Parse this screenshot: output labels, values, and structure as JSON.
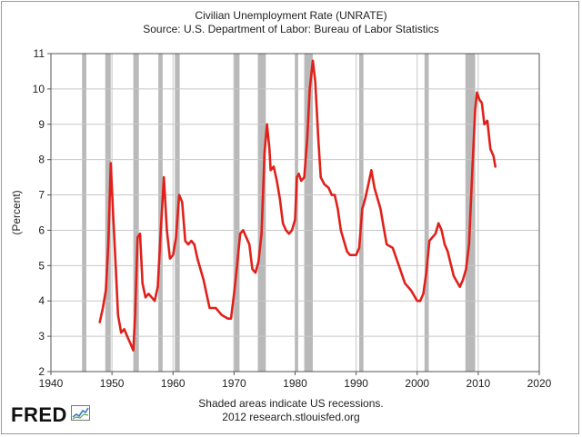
{
  "chart_data": {
    "type": "line",
    "title": "Civilian Unemployment Rate (UNRATE)",
    "subtitle": "Source: U.S. Department of Labor: Bureau of Labor Statistics",
    "xlabel": "",
    "ylabel": "(Percent)",
    "xlim": [
      1940,
      2020
    ],
    "ylim": [
      2,
      11
    ],
    "xticks": [
      1940,
      1950,
      1960,
      1970,
      1980,
      1990,
      2000,
      2010,
      2020
    ],
    "yticks": [
      2,
      3,
      4,
      5,
      6,
      7,
      8,
      9,
      10,
      11
    ],
    "grid": true,
    "series_color": "#e0211b",
    "recession_color": "#b9b9b9",
    "recessions": [
      [
        1945.1,
        1945.8
      ],
      [
        1948.9,
        1949.8
      ],
      [
        1953.5,
        1954.4
      ],
      [
        1957.6,
        1958.3
      ],
      [
        1960.3,
        1961.1
      ],
      [
        1969.9,
        1970.9
      ],
      [
        1973.9,
        1975.2
      ],
      [
        1980.0,
        1980.5
      ],
      [
        1981.5,
        1982.9
      ],
      [
        1990.5,
        1991.2
      ],
      [
        2001.2,
        2001.9
      ],
      [
        2007.9,
        2009.5
      ]
    ],
    "series": [
      {
        "name": "UNRATE",
        "x": [
          1948.0,
          1948.5,
          1949.0,
          1949.4,
          1949.8,
          1950.2,
          1950.6,
          1951.0,
          1951.5,
          1952.0,
          1952.5,
          1953.0,
          1953.5,
          1953.8,
          1954.2,
          1954.6,
          1955.0,
          1955.5,
          1956.0,
          1956.5,
          1957.0,
          1957.5,
          1958.0,
          1958.5,
          1959.0,
          1959.5,
          1960.0,
          1960.5,
          1961.0,
          1961.5,
          1962.0,
          1962.5,
          1963.0,
          1963.5,
          1964.0,
          1965.0,
          1966.0,
          1967.0,
          1968.0,
          1969.0,
          1969.5,
          1970.0,
          1970.5,
          1971.0,
          1971.5,
          1972.0,
          1972.5,
          1973.0,
          1973.5,
          1974.0,
          1974.5,
          1975.0,
          1975.4,
          1975.8,
          1976.0,
          1976.5,
          1977.0,
          1977.5,
          1978.0,
          1978.5,
          1979.0,
          1979.5,
          1980.0,
          1980.3,
          1980.6,
          1981.0,
          1981.5,
          1982.0,
          1982.4,
          1982.9,
          1983.3,
          1983.8,
          1984.2,
          1984.8,
          1985.5,
          1986.0,
          1986.5,
          1987.0,
          1987.5,
          1988.0,
          1988.5,
          1989.0,
          1989.5,
          1990.0,
          1990.5,
          1991.0,
          1991.5,
          1992.0,
          1992.5,
          1993.0,
          1993.5,
          1994.0,
          1994.5,
          1995.0,
          1996.0,
          1997.0,
          1998.0,
          1999.0,
          2000.0,
          2000.5,
          2001.0,
          2001.5,
          2002.0,
          2002.5,
          2003.0,
          2003.5,
          2004.0,
          2004.5,
          2005.0,
          2006.0,
          2007.0,
          2007.5,
          2008.0,
          2008.5,
          2009.0,
          2009.5,
          2009.8,
          2010.2,
          2010.6,
          2011.0,
          2011.5,
          2012.0,
          2012.5,
          2012.8
        ],
        "values": [
          3.4,
          3.8,
          4.3,
          5.6,
          7.9,
          6.4,
          5.0,
          3.6,
          3.1,
          3.2,
          3.0,
          2.8,
          2.6,
          3.6,
          5.8,
          5.9,
          4.5,
          4.1,
          4.2,
          4.1,
          4.0,
          4.4,
          6.0,
          7.5,
          6.0,
          5.2,
          5.3,
          5.8,
          7.0,
          6.8,
          5.7,
          5.6,
          5.7,
          5.6,
          5.2,
          4.6,
          3.8,
          3.8,
          3.6,
          3.5,
          3.5,
          4.2,
          5.0,
          5.9,
          6.0,
          5.8,
          5.6,
          4.9,
          4.8,
          5.1,
          5.9,
          8.2,
          9.0,
          8.3,
          7.7,
          7.8,
          7.4,
          6.9,
          6.2,
          6.0,
          5.9,
          6.0,
          6.3,
          7.5,
          7.6,
          7.4,
          7.5,
          8.6,
          10.0,
          10.8,
          10.2,
          8.6,
          7.5,
          7.3,
          7.2,
          7.0,
          7.0,
          6.6,
          6.0,
          5.7,
          5.4,
          5.3,
          5.3,
          5.3,
          5.5,
          6.6,
          6.9,
          7.3,
          7.7,
          7.2,
          6.9,
          6.6,
          6.1,
          5.6,
          5.5,
          5.0,
          4.5,
          4.3,
          4.0,
          4.0,
          4.2,
          4.8,
          5.7,
          5.8,
          5.9,
          6.2,
          6.0,
          5.6,
          5.4,
          4.7,
          4.4,
          4.6,
          4.9,
          5.6,
          7.6,
          9.4,
          9.9,
          9.7,
          9.6,
          9.0,
          9.1,
          8.3,
          8.1,
          7.8
        ]
      }
    ]
  },
  "footer": {
    "note": "Shaded areas indicate US recessions.",
    "credit": "2012 research.stlouisfed.org",
    "brand": "FRED"
  }
}
